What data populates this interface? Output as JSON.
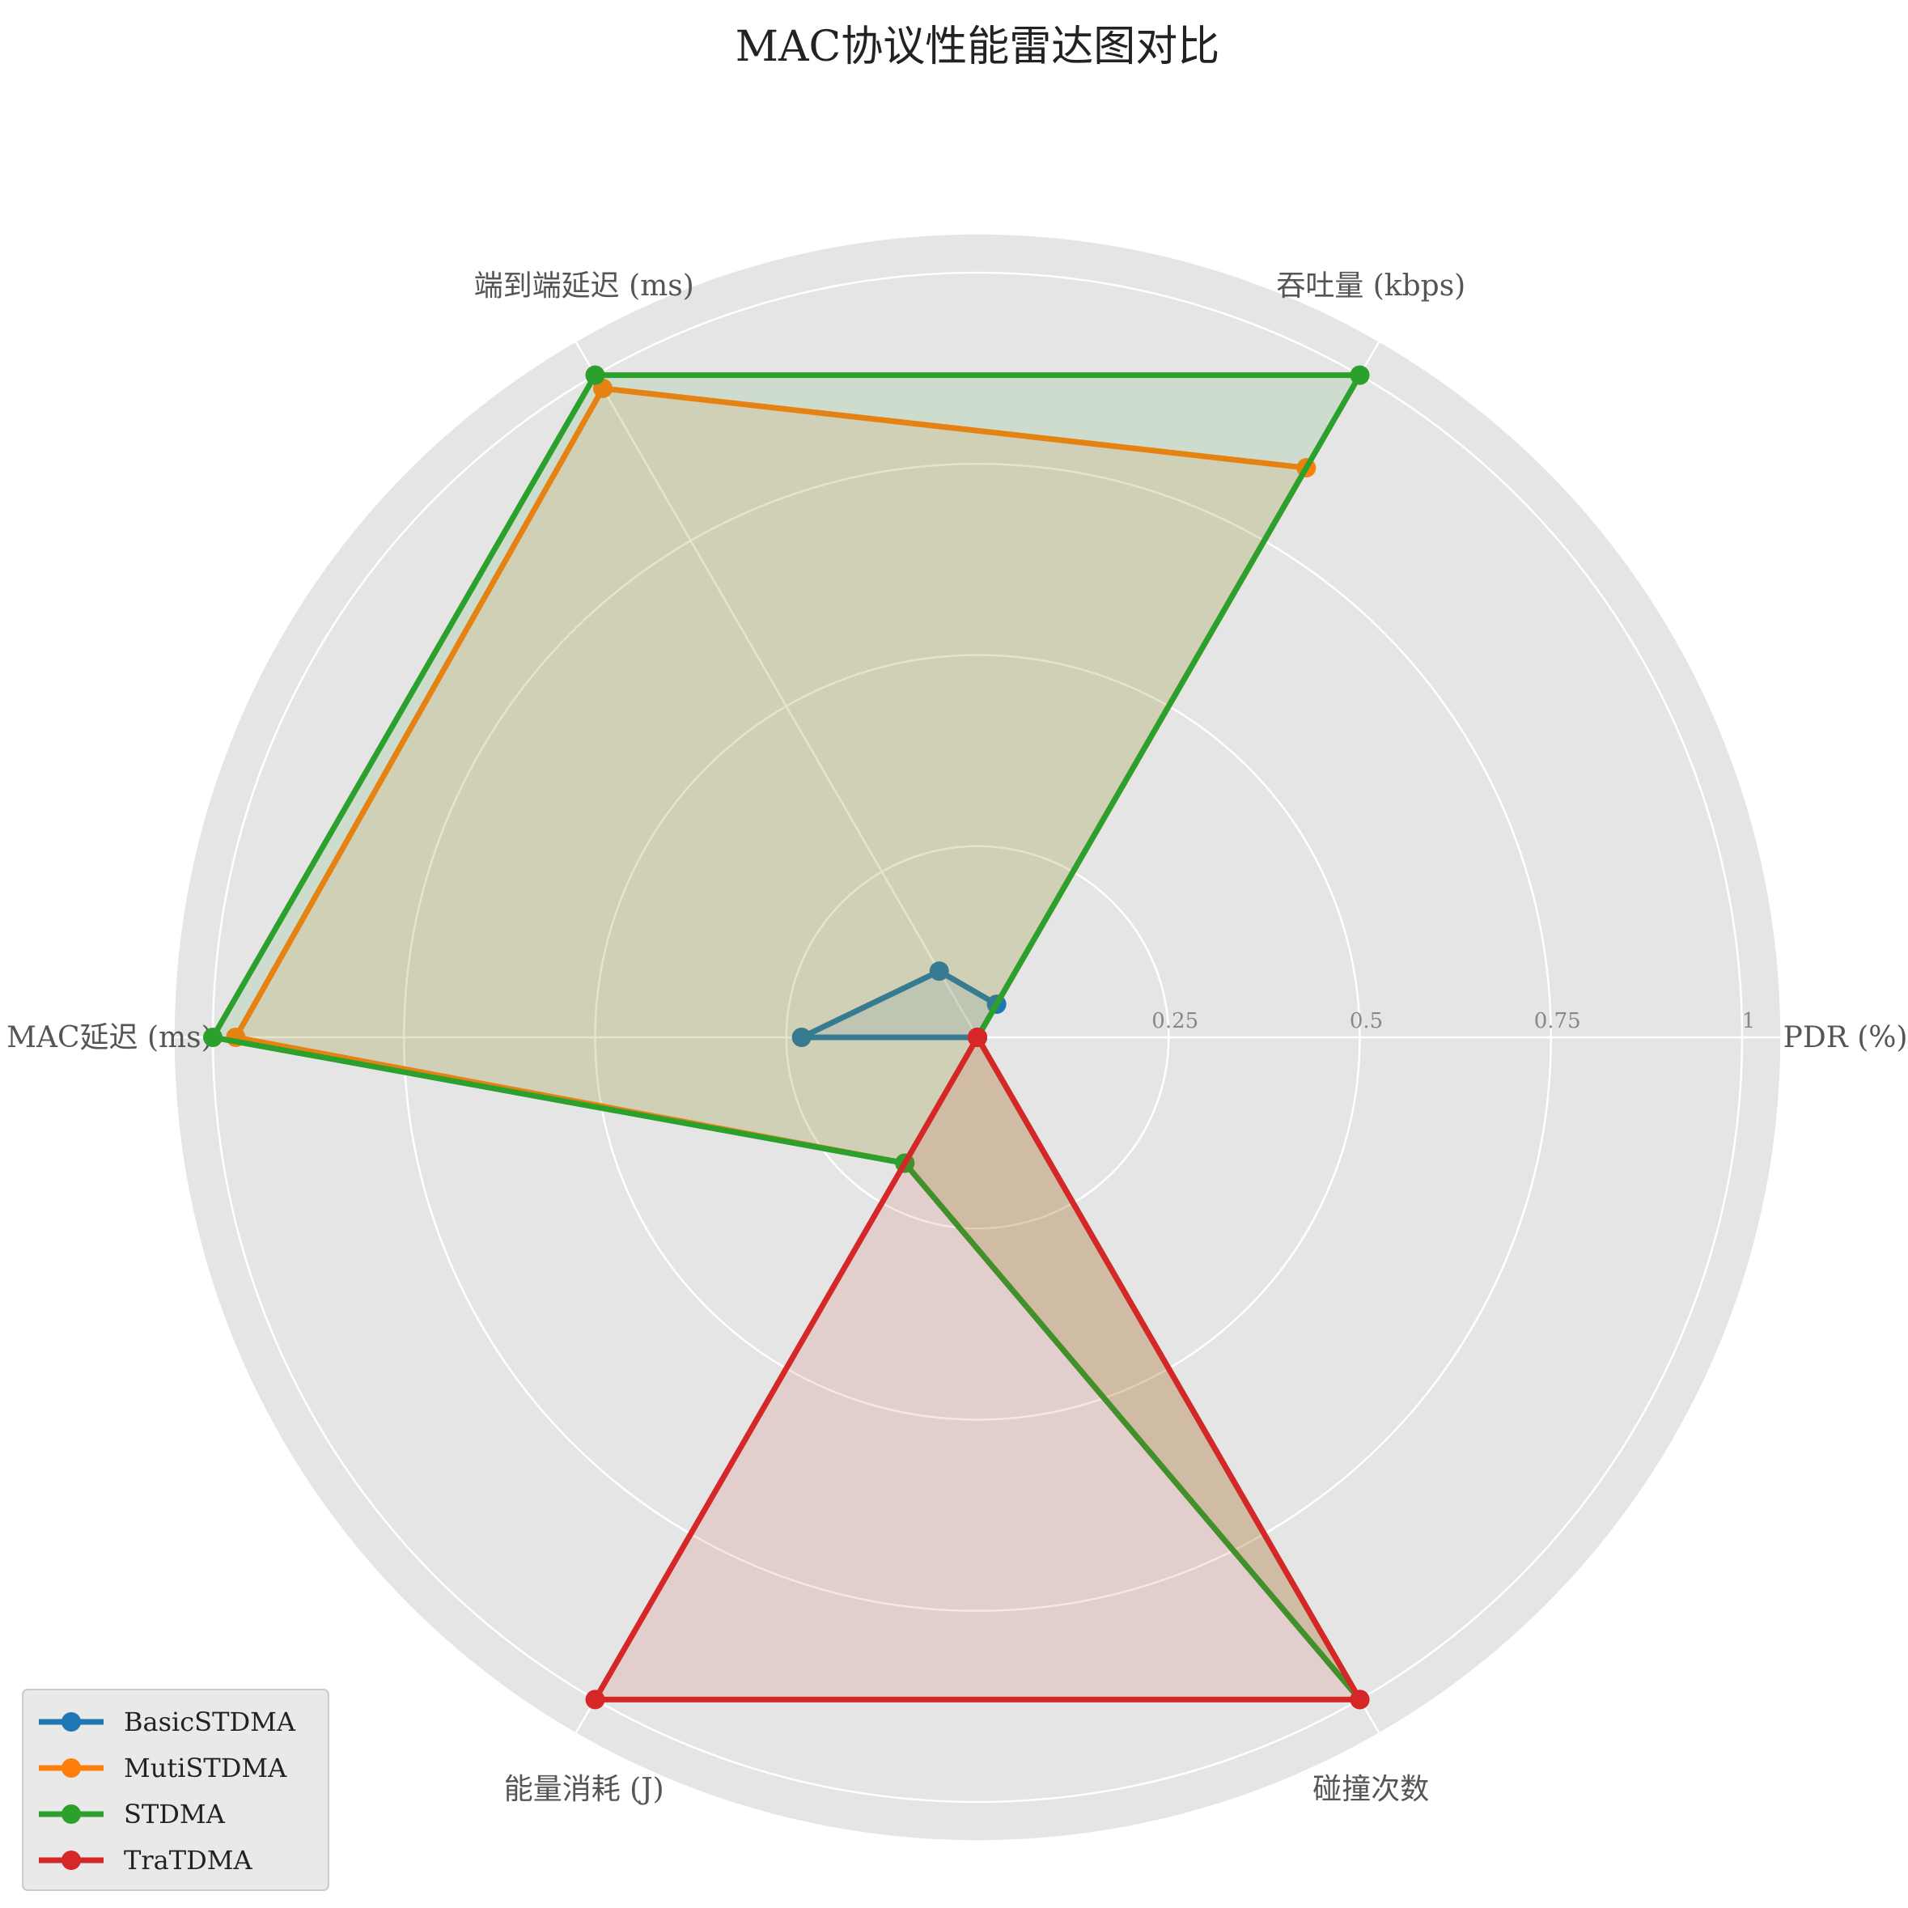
{
  "chart_data": {
    "type": "radar",
    "title": "MAC协议性能雷达图对比",
    "axes": [
      "PDR (%)",
      "吞吐量 (kbps)",
      "端到端延迟 (ms)",
      "MAC延迟 (ms)",
      "能量消耗 (J)",
      "碰撞次数"
    ],
    "radial_ticks": [
      "0.25",
      "0.5",
      "0.75",
      "1"
    ],
    "rlim": [
      0,
      1.05
    ],
    "grid": true,
    "legend_position": "lower-left",
    "series": [
      {
        "name": "BasicSTDMA",
        "color": "#1f77b4",
        "values": [
          0.0,
          0.05,
          0.1,
          0.23,
          0.0,
          0.0
        ]
      },
      {
        "name": "MutiSTDMA",
        "color": "#ff7f0e",
        "values": [
          0.0,
          0.86,
          0.98,
          0.97,
          0.19,
          1.0
        ]
      },
      {
        "name": "STDMA",
        "color": "#2ca02c",
        "values": [
          0.0,
          1.0,
          1.0,
          1.0,
          0.19,
          1.0
        ]
      },
      {
        "name": "TraTDMA",
        "color": "#d62728",
        "values": [
          0.0,
          0.0,
          0.0,
          0.0,
          1.0,
          1.0
        ]
      }
    ]
  }
}
